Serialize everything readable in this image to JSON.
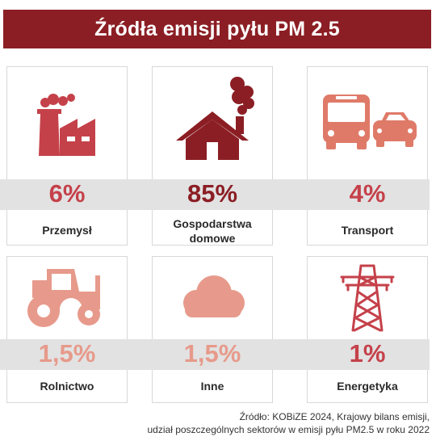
{
  "title": "Źródła emisji pyłu PM 2.5",
  "colors": {
    "title_bg": "#8b1e24",
    "dark_red": "#8b1e24",
    "mid_red": "#c5414a",
    "coral": "#df7a69",
    "light_coral": "#e79a8b",
    "band": "#e2e2e2"
  },
  "cards": [
    {
      "percent": "6%",
      "label": "Przemysł",
      "icon": "factory-icon"
    },
    {
      "percent": "85%",
      "label_line1": "Gospodarstwa",
      "label_line2": "domowe",
      "icon": "house-smoke-icon"
    },
    {
      "percent": "4%",
      "label": "Transport",
      "icon": "bus-car-icon"
    },
    {
      "percent": "1,5%",
      "label": "Rolnictwo",
      "icon": "tractor-icon"
    },
    {
      "percent": "1,5%",
      "label": "Inne",
      "icon": "cloud-icon"
    },
    {
      "percent": "1%",
      "label": "Energetyka",
      "icon": "power-pylon-icon"
    }
  ],
  "source": {
    "line1": "Źródło: KOBiZE 2024, Krajowy bilans emisji,",
    "line2": "udział poszczególnych sektorów w emisji pyłu PM2.5 w roku 2022"
  }
}
